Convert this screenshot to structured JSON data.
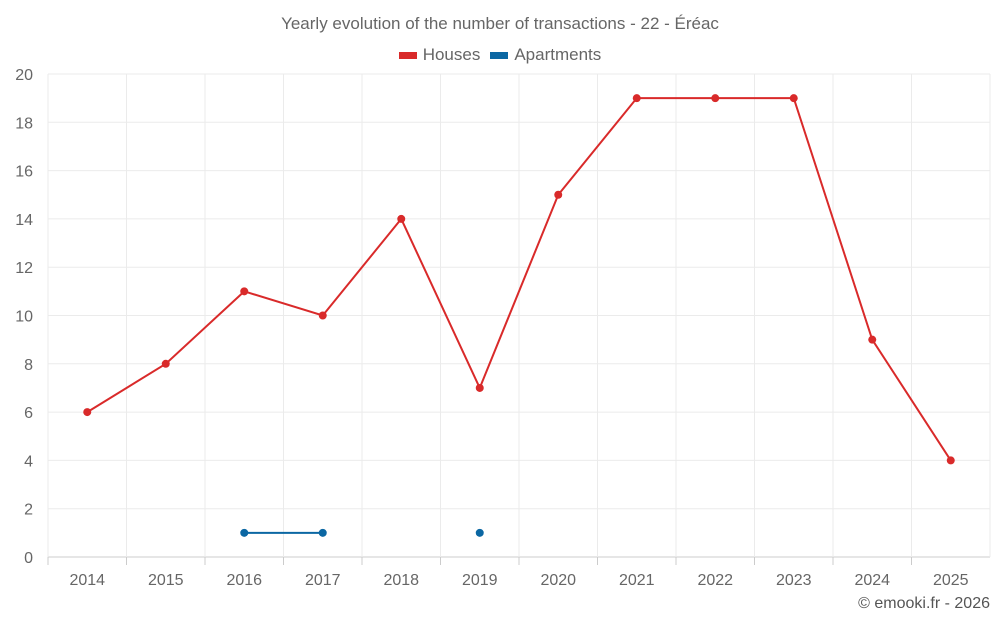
{
  "chart_data": {
    "type": "line",
    "title": "Yearly evolution of the number of transactions - 22 - Éréac",
    "categories": [
      "2014",
      "2015",
      "2016",
      "2017",
      "2018",
      "2019",
      "2020",
      "2021",
      "2022",
      "2023",
      "2024",
      "2025"
    ],
    "series": [
      {
        "name": "Houses",
        "color": "#d92a2a",
        "values": [
          6,
          8,
          11,
          10,
          14,
          7,
          15,
          19,
          19,
          19,
          9,
          4
        ]
      },
      {
        "name": "Apartments",
        "color": "#0b67a3",
        "values": [
          null,
          null,
          1,
          1,
          null,
          1,
          null,
          null,
          null,
          null,
          null,
          null
        ]
      }
    ],
    "ylim": [
      0,
      20
    ],
    "yticks": [
      0,
      2,
      4,
      6,
      8,
      10,
      12,
      14,
      16,
      18,
      20
    ],
    "xlabel": "",
    "ylabel": "",
    "grid": true,
    "legend": "top-center"
  },
  "credit": "© emooki.fr - 2026"
}
